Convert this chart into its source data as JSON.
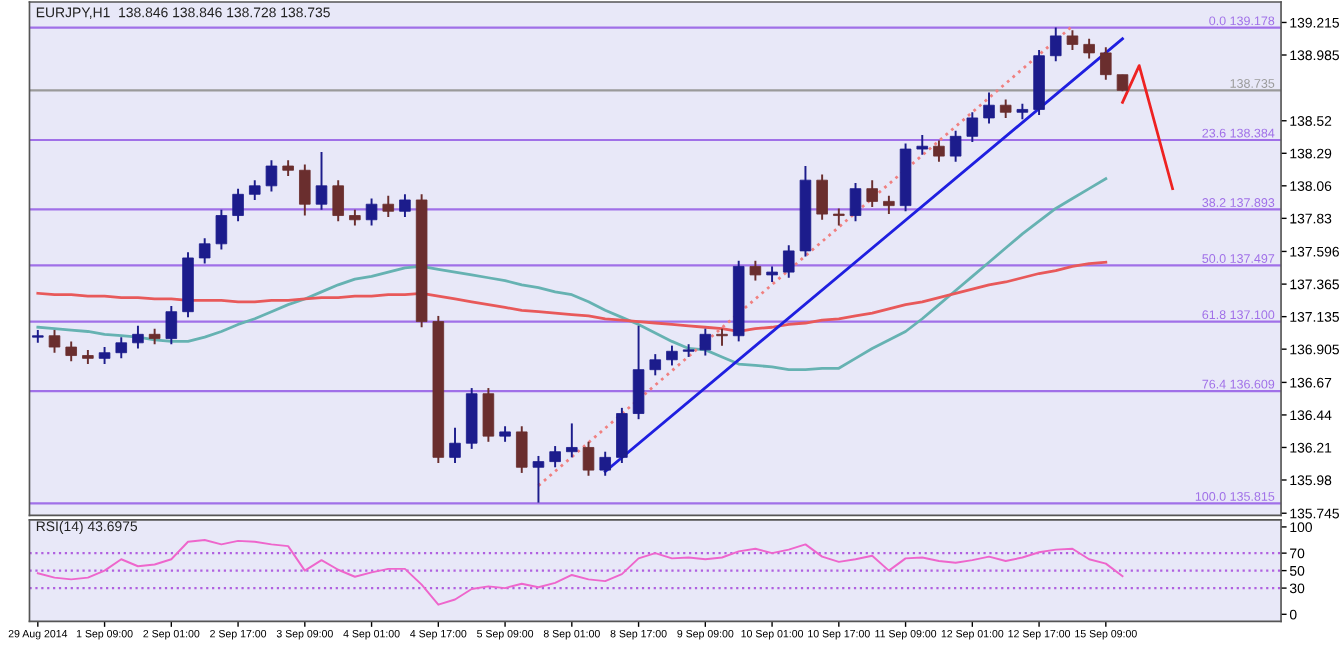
{
  "chart_data": [
    {
      "type": "candlestick",
      "title": "EURJPY,H1  138.846 138.846 138.728 138.735",
      "grid": false,
      "tick_labels": "y",
      "ylim": [
        135.73,
        139.36
      ],
      "yticks": [
        139.215,
        138.985,
        138.52,
        138.29,
        138.06,
        137.83,
        137.596,
        137.365,
        137.135,
        136.905,
        136.67,
        136.44,
        136.21,
        135.98,
        135.745
      ],
      "categories": [
        null,
        null,
        null,
        null,
        null,
        null,
        null,
        null,
        null,
        null,
        null,
        null,
        null,
        null,
        null,
        null,
        null,
        null,
        null,
        null,
        null,
        null,
        null,
        null,
        null,
        null,
        null,
        null,
        null,
        null,
        null,
        null,
        null,
        null,
        null,
        null,
        null,
        null,
        null,
        null,
        null,
        null,
        null,
        null,
        null,
        null,
        null,
        null,
        null,
        null,
        null,
        null,
        null,
        null,
        null,
        null,
        null,
        null,
        null,
        null,
        null,
        null,
        null,
        null,
        null,
        null,
        null,
        null,
        null,
        null,
        null,
        null,
        null,
        null,
        null
      ],
      "ohlc": [
        [
          136.99,
          137.04,
          136.95,
          137.0
        ],
        [
          137.0,
          137.04,
          136.88,
          136.92
        ],
        [
          136.92,
          136.96,
          136.82,
          136.86
        ],
        [
          136.86,
          136.9,
          136.8,
          136.84
        ],
        [
          136.84,
          136.92,
          136.8,
          136.88
        ],
        [
          136.88,
          136.99,
          136.84,
          136.95
        ],
        [
          136.95,
          137.07,
          136.91,
          137.01
        ],
        [
          137.01,
          137.05,
          136.94,
          136.98
        ],
        [
          136.98,
          137.21,
          136.94,
          137.17
        ],
        [
          137.17,
          137.59,
          137.13,
          137.55
        ],
        [
          137.55,
          137.69,
          137.51,
          137.65
        ],
        [
          137.65,
          137.89,
          137.61,
          137.85
        ],
        [
          137.85,
          138.04,
          137.81,
          138.0
        ],
        [
          138.0,
          138.1,
          137.96,
          138.06
        ],
        [
          138.06,
          138.24,
          138.02,
          138.2
        ],
        [
          138.2,
          138.24,
          138.13,
          138.17
        ],
        [
          138.17,
          138.21,
          137.85,
          137.93
        ],
        [
          137.93,
          138.3,
          137.89,
          138.06
        ],
        [
          138.06,
          138.1,
          137.81,
          137.85
        ],
        [
          137.85,
          137.89,
          137.78,
          137.82
        ],
        [
          137.82,
          137.97,
          137.78,
          137.93
        ],
        [
          137.93,
          137.99,
          137.84,
          137.88
        ],
        [
          137.88,
          138.0,
          137.84,
          137.96
        ],
        [
          137.96,
          138.0,
          137.06,
          137.1
        ],
        [
          137.1,
          137.14,
          136.1,
          136.14
        ],
        [
          136.14,
          136.35,
          136.1,
          136.24
        ],
        [
          136.24,
          136.63,
          136.2,
          136.59
        ],
        [
          136.59,
          136.63,
          136.25,
          136.29
        ],
        [
          136.29,
          136.36,
          136.25,
          136.32
        ],
        [
          136.32,
          136.36,
          136.03,
          136.07
        ],
        [
          136.07,
          136.15,
          135.82,
          136.11
        ],
        [
          136.11,
          136.22,
          136.07,
          136.18
        ],
        [
          136.18,
          136.38,
          136.14,
          136.21
        ],
        [
          136.21,
          136.25,
          136.01,
          136.05
        ],
        [
          136.05,
          136.18,
          136.01,
          136.14
        ],
        [
          136.14,
          136.49,
          136.1,
          136.45
        ],
        [
          136.45,
          137.07,
          136.41,
          136.76
        ],
        [
          136.76,
          136.87,
          136.72,
          136.83
        ],
        [
          136.83,
          136.93,
          136.79,
          136.89
        ],
        [
          136.89,
          136.94,
          136.85,
          136.9
        ],
        [
          136.9,
          137.05,
          136.86,
          137.01
        ],
        [
          137.01,
          137.05,
          136.93,
          137.0
        ],
        [
          137.0,
          137.53,
          136.96,
          137.49
        ],
        [
          137.49,
          137.53,
          137.39,
          137.43
        ],
        [
          137.43,
          137.49,
          137.38,
          137.45
        ],
        [
          137.45,
          137.64,
          137.41,
          137.6
        ],
        [
          137.6,
          138.2,
          137.56,
          138.1
        ],
        [
          138.1,
          138.14,
          137.82,
          137.86
        ],
        [
          137.86,
          137.9,
          137.78,
          137.85
        ],
        [
          137.85,
          138.08,
          137.81,
          138.04
        ],
        [
          138.04,
          138.1,
          137.91,
          137.95
        ],
        [
          137.95,
          137.99,
          137.86,
          137.92
        ],
        [
          137.92,
          138.36,
          137.88,
          138.32
        ],
        [
          138.32,
          138.42,
          138.28,
          138.34
        ],
        [
          138.34,
          138.38,
          138.23,
          138.27
        ],
        [
          138.27,
          138.45,
          138.23,
          138.41
        ],
        [
          138.41,
          138.58,
          138.37,
          138.54
        ],
        [
          138.54,
          138.72,
          138.5,
          138.63
        ],
        [
          138.63,
          138.67,
          138.54,
          138.58
        ],
        [
          138.58,
          138.64,
          138.53,
          138.6
        ],
        [
          138.6,
          139.02,
          138.56,
          138.98
        ],
        [
          138.98,
          139.18,
          138.94,
          139.12
        ],
        [
          139.12,
          139.16,
          139.02,
          139.06
        ],
        [
          139.06,
          139.1,
          138.96,
          139.0
        ],
        [
          139.0,
          139.04,
          138.81,
          138.846
        ],
        [
          138.846,
          138.846,
          138.728,
          138.735
        ],
        null,
        null,
        null,
        null,
        null,
        null,
        null,
        null,
        null
      ],
      "colors": [
        "#1c1c8c",
        "#6a2e2e",
        "#6a2e2e",
        "#6a2e2e",
        "#1c1c8c",
        "#1c1c8c",
        "#1c1c8c",
        "#6a2e2e",
        "#1c1c8c",
        "#1c1c8c",
        "#1c1c8c",
        "#1c1c8c",
        "#1c1c8c",
        "#1c1c8c",
        "#1c1c8c",
        "#6a2e2e",
        "#6a2e2e",
        "#1c1c8c",
        "#6a2e2e",
        "#6a2e2e",
        "#1c1c8c",
        "#6a2e2e",
        "#1c1c8c",
        "#6a2e2e",
        "#6a2e2e",
        "#1c1c8c",
        "#1c1c8c",
        "#6a2e2e",
        "#1c1c8c",
        "#6a2e2e",
        "#1c1c8c",
        "#1c1c8c",
        "#1c1c8c",
        "#6a2e2e",
        "#1c1c8c",
        "#1c1c8c",
        "#1c1c8c",
        "#1c1c8c",
        "#1c1c8c",
        "#1c1c8c",
        "#1c1c8c",
        "#6a2e2e",
        "#1c1c8c",
        "#6a2e2e",
        "#1c1c8c",
        "#1c1c8c",
        "#1c1c8c",
        "#6a2e2e",
        "#6a2e2e",
        "#1c1c8c",
        "#6a2e2e",
        "#6a2e2e",
        "#1c1c8c",
        "#1c1c8c",
        "#6a2e2e",
        "#1c1c8c",
        "#1c1c8c",
        "#1c1c8c",
        "#6a2e2e",
        "#1c1c8c",
        "#1c1c8c",
        "#1c1c8c",
        "#6a2e2e",
        "#6a2e2e",
        "#6a2e2e",
        "#6a2e2e",
        null,
        null,
        null,
        null,
        null,
        null,
        null,
        null,
        null
      ],
      "series": [
        {
          "type": "line",
          "color": "#66b2b2",
          "line_style": "solid",
          "values": [
            137.06,
            137.05,
            137.04,
            137.03,
            137.01,
            137.0,
            136.99,
            136.97,
            136.96,
            136.96,
            136.99,
            137.03,
            137.08,
            137.12,
            137.17,
            137.22,
            137.26,
            137.31,
            137.36,
            137.4,
            137.42,
            137.45,
            137.48,
            137.49,
            137.47,
            137.45,
            137.43,
            137.41,
            137.39,
            137.36,
            137.34,
            137.31,
            137.29,
            137.24,
            137.18,
            137.13,
            137.08,
            137.02,
            136.96,
            136.91,
            136.9,
            136.85,
            136.8,
            136.79,
            136.78,
            136.76,
            136.76,
            136.77,
            136.77,
            136.84,
            136.91,
            136.97,
            137.03,
            137.12,
            137.22,
            137.32,
            137.42,
            137.52,
            137.62,
            137.72,
            137.81,
            137.9,
            137.97,
            138.04,
            138.11,
            null,
            null,
            null,
            null,
            null,
            null,
            null,
            null,
            null,
            null
          ]
        },
        {
          "type": "line",
          "color": "#e8595a",
          "line_style": "solid",
          "values": [
            137.3,
            137.29,
            137.29,
            137.28,
            137.28,
            137.27,
            137.27,
            137.26,
            137.26,
            137.25,
            137.25,
            137.25,
            137.24,
            137.24,
            137.25,
            137.25,
            137.26,
            137.27,
            137.27,
            137.28,
            137.28,
            137.29,
            137.29,
            137.3,
            137.28,
            137.26,
            137.24,
            137.22,
            137.2,
            137.18,
            137.17,
            137.16,
            137.15,
            137.14,
            137.12,
            137.11,
            137.1,
            137.09,
            137.08,
            137.07,
            137.06,
            137.05,
            137.03,
            137.05,
            137.06,
            137.08,
            137.09,
            137.11,
            137.12,
            137.14,
            137.16,
            137.19,
            137.22,
            137.24,
            137.27,
            137.3,
            137.33,
            137.36,
            137.38,
            137.41,
            137.44,
            137.46,
            137.49,
            137.51,
            137.52,
            null,
            null,
            null,
            null,
            null,
            null,
            null,
            null,
            null,
            null
          ]
        },
        {
          "type": "line",
          "color": "#1f1fe0",
          "line_style": "solid",
          "values": [
            null,
            null,
            null,
            null,
            null,
            null,
            null,
            null,
            null,
            null,
            null,
            null,
            null,
            null,
            null,
            null,
            null,
            null,
            null,
            null,
            null,
            null,
            null,
            null,
            null,
            null,
            null,
            null,
            null,
            null,
            null,
            null,
            null,
            null,
            136.04,
            null,
            null,
            null,
            null,
            null,
            null,
            null,
            null,
            null,
            null,
            null,
            null,
            null,
            null,
            null,
            null,
            null,
            null,
            null,
            null,
            null,
            null,
            null,
            null,
            null,
            null,
            null,
            null,
            null,
            null,
            139.1,
            null,
            null,
            null,
            null,
            null,
            null,
            null,
            null,
            null
          ]
        },
        {
          "type": "line",
          "color": "#f08080",
          "line_style": "dotted",
          "values": [
            null,
            null,
            null,
            null,
            null,
            null,
            null,
            null,
            null,
            null,
            null,
            null,
            null,
            null,
            null,
            null,
            null,
            null,
            null,
            null,
            null,
            null,
            null,
            null,
            null,
            null,
            null,
            null,
            null,
            null,
            135.94,
            null,
            null,
            null,
            null,
            null,
            null,
            null,
            null,
            null,
            null,
            null,
            null,
            null,
            null,
            null,
            null,
            null,
            null,
            null,
            null,
            null,
            null,
            null,
            null,
            null,
            null,
            null,
            null,
            null,
            null,
            null,
            139.19,
            null,
            null,
            null,
            null,
            null,
            null,
            null,
            null,
            null,
            null,
            null,
            null
          ]
        },
        {
          "type": "line",
          "color": "#ee2222",
          "line_style": "solid",
          "values": [
            null,
            null,
            null,
            null,
            null,
            null,
            null,
            null,
            null,
            null,
            null,
            null,
            null,
            null,
            null,
            null,
            null,
            null,
            null,
            null,
            null,
            null,
            null,
            null,
            null,
            null,
            null,
            null,
            null,
            null,
            null,
            null,
            null,
            null,
            null,
            null,
            null,
            null,
            null,
            null,
            null,
            null,
            null,
            null,
            null,
            null,
            null,
            null,
            null,
            null,
            null,
            null,
            null,
            null,
            null,
            null,
            null,
            null,
            null,
            null,
            null,
            null,
            null,
            null,
            null,
            138.65,
            138.91,
            null,
            138.04,
            null,
            null,
            null,
            null,
            null,
            null
          ]
        }
      ],
      "ref_lines": [
        {
          "axis": "y",
          "value": 139.178,
          "label": "0.0 139.178",
          "color": "#a070e8"
        },
        {
          "axis": "y",
          "value": 138.384,
          "label": "23.6 138.384",
          "color": "#a070e8"
        },
        {
          "axis": "y",
          "value": 137.893,
          "label": "38.2 137.893",
          "color": "#a070e8"
        },
        {
          "axis": "y",
          "value": 137.497,
          "label": "50.0 137.497",
          "color": "#a070e8"
        },
        {
          "axis": "y",
          "value": 137.1,
          "label": "61.8 137.100",
          "color": "#a070e8"
        },
        {
          "axis": "y",
          "value": 136.609,
          "label": "76.4 136.609",
          "color": "#a070e8"
        },
        {
          "axis": "y",
          "value": 135.815,
          "label": "100.0 135.815",
          "color": "#a070e8"
        },
        {
          "axis": "y",
          "value": 138.735,
          "label": "138.735",
          "color": "#9a9a9a"
        }
      ]
    },
    {
      "type": "line",
      "title": "RSI(14) 43.6975",
      "grid": false,
      "ylim": [
        -8,
        108
      ],
      "yticks": [
        0,
        30,
        50,
        70,
        100
      ],
      "categories": [
        "29 Aug 2014",
        null,
        null,
        null,
        "1 Sep 09:00",
        null,
        null,
        null,
        "2 Sep 01:00",
        null,
        null,
        null,
        "2 Sep 17:00",
        null,
        null,
        null,
        "3 Sep 09:00",
        null,
        null,
        null,
        "4 Sep 01:00",
        null,
        null,
        null,
        "4 Sep 17:00",
        null,
        null,
        null,
        "5 Sep 09:00",
        null,
        null,
        null,
        "8 Sep 01:00",
        null,
        null,
        null,
        "8 Sep 17:00",
        null,
        null,
        null,
        "9 Sep 09:00",
        null,
        null,
        null,
        "10 Sep 01:00",
        null,
        null,
        null,
        "10 Sep 17:00",
        null,
        null,
        null,
        "11 Sep 09:00",
        null,
        null,
        null,
        "12 Sep 01:00",
        null,
        null,
        null,
        "12 Sep 17:00",
        null,
        null,
        null,
        "15 Sep 09:00",
        null,
        null,
        null,
        null,
        null,
        null,
        null,
        null,
        null,
        null
      ],
      "series": [
        {
          "color": "#ee66cc",
          "values": [
            47,
            42,
            40,
            42,
            50,
            63,
            55,
            57,
            63,
            83,
            85,
            80,
            84,
            83,
            80,
            78,
            50,
            62,
            51,
            43,
            48,
            52,
            52,
            34,
            11,
            17,
            29,
            32,
            30,
            35,
            31,
            36,
            45,
            40,
            38,
            46,
            64,
            70,
            64,
            65,
            63,
            65,
            72,
            75,
            70,
            74,
            80,
            66,
            60,
            63,
            67,
            50,
            64,
            65,
            61,
            59,
            62,
            66,
            61,
            65,
            71,
            74,
            75,
            63,
            58,
            43.7,
            null,
            null,
            null,
            null,
            null,
            null,
            null,
            null,
            null
          ]
        }
      ],
      "ref_lines": [
        {
          "axis": "y",
          "value": 70,
          "line_style": "dotted",
          "color": "#b060e0"
        },
        {
          "axis": "y",
          "value": 50,
          "line_style": "dotted",
          "color": "#b060e0"
        },
        {
          "axis": "y",
          "value": 30,
          "line_style": "dotted",
          "color": "#b060e0"
        }
      ]
    }
  ]
}
